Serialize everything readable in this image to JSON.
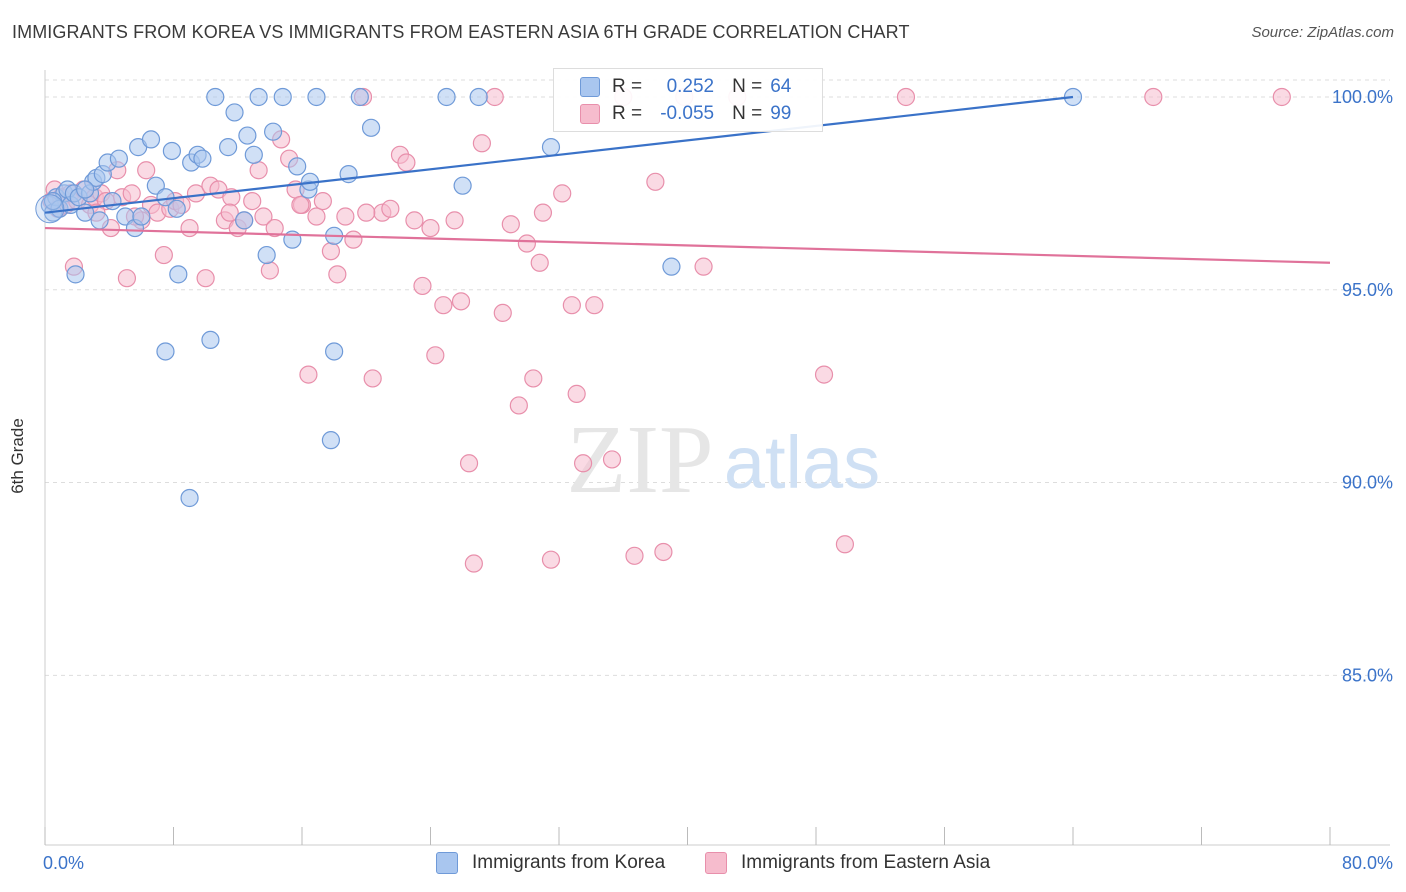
{
  "title": "IMMIGRANTS FROM KOREA VS IMMIGRANTS FROM EASTERN ASIA 6TH GRADE CORRELATION CHART",
  "source": "Source: ZipAtlas.com",
  "watermark": {
    "zip": "ZIP",
    "atlas": "atlas"
  },
  "legend": {
    "korea": {
      "r_label": "R =",
      "r_value": "0.252",
      "n_label": "N =",
      "n_value": "64"
    },
    "eastasia": {
      "r_label": "R =",
      "r_value": "-0.055",
      "n_label": "N =",
      "n_value": "99"
    }
  },
  "bottom_legend": {
    "korea": "Immigrants from Korea",
    "eastasia": "Immigrants from Eastern Asia"
  },
  "colors": {
    "korea_fill": "#a9c6ef",
    "korea_stroke": "#6f9ad8",
    "korea_line": "#3a72c8",
    "eastasia_fill": "#f6bccd",
    "eastasia_stroke": "#e88fab",
    "eastasia_line": "#e0729a",
    "tick_text": "#3b73c9",
    "grid": "#dddddd"
  },
  "chart_data": {
    "type": "scatter",
    "title": "IMMIGRANTS FROM KOREA VS IMMIGRANTS FROM EASTERN ASIA 6TH GRADE CORRELATION CHART",
    "xlabel": "",
    "ylabel": "6th Grade",
    "xlim": [
      0,
      80
    ],
    "ylim": [
      80.6,
      100.7
    ],
    "x_tick_labels": [
      "0.0%",
      "80.0%"
    ],
    "y_ticks": [
      100,
      95,
      90,
      85
    ],
    "y_tick_labels": [
      "100.0%",
      "95.0%",
      "90.0%",
      "85.0%"
    ],
    "grid": true,
    "legend_position": "top-center",
    "series": [
      {
        "name": "Immigrants from Korea",
        "color": "#6f9ad8",
        "r": 0.252,
        "n": 64,
        "trend": {
          "x": [
            0,
            64
          ],
          "y": [
            97.0,
            100.0
          ]
        },
        "points": [
          [
            0.3,
            97.2
          ],
          [
            0.5,
            97.0
          ],
          [
            0.7,
            97.4
          ],
          [
            0.9,
            97.1
          ],
          [
            1.2,
            97.5
          ],
          [
            1.4,
            97.6
          ],
          [
            1.6,
            97.2
          ],
          [
            1.8,
            97.5
          ],
          [
            2.1,
            97.4
          ],
          [
            2.5,
            97.0
          ],
          [
            2.8,
            97.5
          ],
          [
            3.0,
            97.8
          ],
          [
            3.2,
            97.9
          ],
          [
            3.4,
            96.8
          ],
          [
            3.6,
            98.0
          ],
          [
            3.9,
            98.3
          ],
          [
            4.2,
            97.3
          ],
          [
            4.6,
            98.4
          ],
          [
            5.0,
            96.9
          ],
          [
            5.6,
            96.6
          ],
          [
            5.8,
            98.7
          ],
          [
            6.0,
            96.9
          ],
          [
            6.6,
            98.9
          ],
          [
            6.9,
            97.7
          ],
          [
            7.5,
            97.4
          ],
          [
            7.9,
            98.6
          ],
          [
            8.2,
            97.1
          ],
          [
            9.1,
            98.3
          ],
          [
            9.5,
            98.5
          ],
          [
            9.8,
            98.4
          ],
          [
            10.6,
            100.0
          ],
          [
            11.4,
            98.7
          ],
          [
            11.8,
            99.6
          ],
          [
            12.4,
            96.8
          ],
          [
            12.6,
            99.0
          ],
          [
            13.0,
            98.5
          ],
          [
            13.3,
            100.0
          ],
          [
            13.8,
            95.9
          ],
          [
            14.2,
            99.1
          ],
          [
            14.8,
            100.0
          ],
          [
            15.4,
            96.3
          ],
          [
            15.7,
            98.2
          ],
          [
            16.4,
            97.6
          ],
          [
            16.5,
            97.8
          ],
          [
            16.9,
            100.0
          ],
          [
            18.0,
            96.4
          ],
          [
            18.9,
            98.0
          ],
          [
            19.6,
            100.0
          ],
          [
            20.3,
            99.2
          ],
          [
            25.0,
            100.0
          ],
          [
            26.0,
            97.7
          ],
          [
            27.0,
            100.0
          ],
          [
            31.5,
            98.7
          ],
          [
            39.0,
            95.6
          ],
          [
            64.0,
            100.0
          ],
          [
            1.9,
            95.4
          ],
          [
            8.3,
            95.4
          ],
          [
            7.5,
            93.4
          ],
          [
            10.3,
            93.7
          ],
          [
            18.0,
            93.4
          ],
          [
            17.8,
            91.1
          ],
          [
            9.0,
            89.6
          ],
          [
            0.5,
            97.3
          ],
          [
            2.5,
            97.6
          ]
        ]
      },
      {
        "name": "Immigrants from Eastern Asia",
        "color": "#e88fab",
        "r": -0.055,
        "n": 99,
        "trend": {
          "x": [
            0,
            80
          ],
          "y": [
            96.6,
            95.7
          ]
        },
        "points": [
          [
            0.4,
            97.3
          ],
          [
            0.6,
            97.6
          ],
          [
            0.8,
            97.1
          ],
          [
            1.0,
            97.4
          ],
          [
            1.3,
            97.2
          ],
          [
            1.6,
            97.5
          ],
          [
            2.0,
            97.3
          ],
          [
            2.4,
            97.6
          ],
          [
            2.8,
            97.2
          ],
          [
            3.1,
            97.4
          ],
          [
            3.5,
            97.5
          ],
          [
            3.8,
            97.3
          ],
          [
            4.1,
            96.6
          ],
          [
            4.5,
            98.1
          ],
          [
            4.8,
            97.4
          ],
          [
            5.1,
            95.3
          ],
          [
            5.4,
            97.5
          ],
          [
            6.0,
            96.8
          ],
          [
            6.3,
            98.1
          ],
          [
            6.6,
            97.2
          ],
          [
            7.0,
            97.0
          ],
          [
            7.4,
            95.9
          ],
          [
            7.8,
            97.1
          ],
          [
            8.1,
            97.3
          ],
          [
            8.5,
            97.2
          ],
          [
            9.0,
            96.6
          ],
          [
            9.4,
            97.5
          ],
          [
            10.0,
            95.3
          ],
          [
            10.3,
            97.7
          ],
          [
            10.8,
            97.6
          ],
          [
            11.2,
            96.8
          ],
          [
            11.6,
            97.4
          ],
          [
            12.0,
            96.6
          ],
          [
            12.4,
            96.8
          ],
          [
            12.9,
            97.3
          ],
          [
            13.3,
            98.1
          ],
          [
            13.6,
            96.9
          ],
          [
            14.0,
            95.5
          ],
          [
            14.3,
            96.6
          ],
          [
            14.7,
            98.9
          ],
          [
            15.2,
            98.4
          ],
          [
            15.6,
            97.6
          ],
          [
            16.0,
            97.2
          ],
          [
            16.4,
            92.8
          ],
          [
            16.9,
            96.9
          ],
          [
            17.3,
            97.3
          ],
          [
            17.8,
            96.0
          ],
          [
            18.2,
            95.4
          ],
          [
            18.7,
            96.9
          ],
          [
            19.2,
            96.3
          ],
          [
            19.8,
            100.0
          ],
          [
            20.4,
            92.7
          ],
          [
            21.0,
            97.0
          ],
          [
            21.5,
            97.1
          ],
          [
            22.1,
            98.5
          ],
          [
            22.5,
            98.3
          ],
          [
            23.0,
            96.8
          ],
          [
            23.5,
            95.1
          ],
          [
            24.0,
            96.6
          ],
          [
            24.3,
            93.3
          ],
          [
            24.8,
            94.6
          ],
          [
            25.5,
            96.8
          ],
          [
            25.9,
            94.7
          ],
          [
            26.4,
            90.5
          ],
          [
            26.7,
            87.9
          ],
          [
            27.2,
            98.8
          ],
          [
            28.0,
            100.0
          ],
          [
            28.5,
            94.4
          ],
          [
            29.0,
            96.7
          ],
          [
            29.5,
            92.0
          ],
          [
            30.0,
            96.2
          ],
          [
            30.4,
            92.7
          ],
          [
            30.8,
            95.7
          ],
          [
            31.0,
            97.0
          ],
          [
            31.5,
            88.0
          ],
          [
            32.2,
            97.5
          ],
          [
            32.8,
            94.6
          ],
          [
            33.1,
            92.3
          ],
          [
            33.5,
            90.5
          ],
          [
            34.2,
            94.6
          ],
          [
            35.3,
            90.6
          ],
          [
            36.0,
            100.0
          ],
          [
            36.7,
            88.1
          ],
          [
            38.0,
            97.8
          ],
          [
            38.5,
            88.2
          ],
          [
            39.8,
            100.0
          ],
          [
            41.0,
            95.6
          ],
          [
            43.1,
            100.0
          ],
          [
            48.5,
            92.8
          ],
          [
            49.8,
            88.4
          ],
          [
            53.6,
            100.0
          ],
          [
            69.0,
            100.0
          ],
          [
            77.0,
            100.0
          ],
          [
            1.8,
            95.6
          ],
          [
            5.6,
            96.9
          ],
          [
            11.5,
            97.0
          ],
          [
            15.9,
            97.2
          ],
          [
            20.0,
            97.0
          ],
          [
            3.2,
            97.0
          ]
        ]
      }
    ]
  }
}
